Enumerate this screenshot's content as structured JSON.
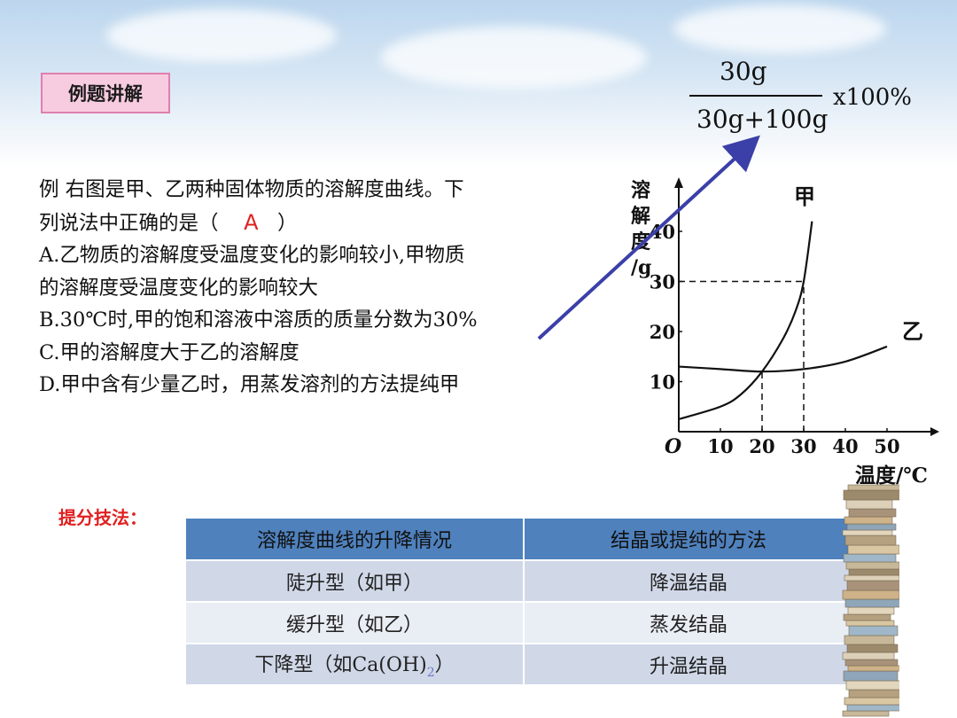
{
  "header": {
    "tag_label": "例题讲解"
  },
  "formula": {
    "numerator": "30g",
    "denominator": "30g+100g",
    "multiplier": "x100%"
  },
  "question": {
    "line1": "例 右图是甲、乙两种固体物质的溶解度曲线。下",
    "line2_pre": "列说法中正确的是（",
    "answer": "A",
    "line2_post": "）",
    "option_a_1": " A.乙物质的溶解度受温度变化的影响较小,甲物质",
    "option_a_2": "的溶解度受温度变化的影响较大",
    "option_b": " B.30℃时,甲的饱和溶液中溶质的质量分数为30%",
    "option_c": " C.甲的溶解度大于乙的溶解度",
    "option_d": " D.甲中含有少量乙时，用蒸发溶剂的方法提纯甲"
  },
  "graph": {
    "ylabel_chars": [
      "溶",
      "解",
      "度",
      "/g"
    ],
    "xlabel": "温度/℃",
    "origin": "O",
    "x_ticks": [
      "10",
      "20",
      "30",
      "40",
      "50"
    ],
    "y_ticks": [
      "10",
      "20",
      "30",
      "40"
    ],
    "curve_a_label": "甲",
    "curve_b_label": "乙"
  },
  "chart_data": {
    "type": "line",
    "xlabel": "温度/℃",
    "ylabel": "溶解度/g",
    "xlim": [
      0,
      50
    ],
    "ylim": [
      0,
      45
    ],
    "x_ticks": [
      10,
      20,
      30,
      40,
      50
    ],
    "y_ticks": [
      10,
      20,
      30,
      40
    ],
    "series": [
      {
        "name": "甲",
        "x": [
          0,
          10,
          15,
          20,
          25,
          28,
          30,
          32
        ],
        "y": [
          2.5,
          5,
          7.5,
          12,
          18.5,
          24,
          30,
          42
        ]
      },
      {
        "name": "乙",
        "x": [
          0,
          10,
          20,
          30,
          40,
          50
        ],
        "y": [
          13,
          12.5,
          12,
          12.5,
          14,
          17
        ]
      }
    ],
    "annotations": [
      {
        "type": "dashed-guide",
        "x": 20,
        "y": 12
      },
      {
        "type": "dashed-guide",
        "x": 30,
        "y": 30
      }
    ]
  },
  "tips": {
    "label": "提分技法："
  },
  "table": {
    "headers": [
      "溶解度曲线的升降情况",
      "结晶或提纯的方法"
    ],
    "rows": [
      {
        "type": "陡升型（如甲）",
        "method": "降温结晶"
      },
      {
        "type": "缓升型（如乙）",
        "method": "蒸发结晶"
      },
      {
        "type_pre": "下降型（如Ca(OH)",
        "type_sub": "2",
        "type_post": "）",
        "method": "升温结晶"
      }
    ]
  },
  "colors": {
    "arrow": "#3b3fa8",
    "answer": "#e02020",
    "tag_bg": "#f7cbe0",
    "table_header": "#4f81bd"
  }
}
